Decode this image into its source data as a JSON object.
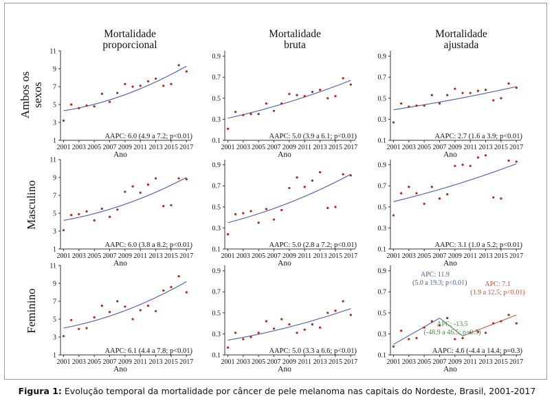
{
  "column_titles": [
    {
      "line1": "Mortalidade",
      "line2": "proporcional"
    },
    {
      "line1": "Mortalidade",
      "line2": "bruta"
    },
    {
      "line1": "Mortalidade",
      "line2": "ajustada"
    }
  ],
  "row_titles": [
    {
      "line1": "Ambos os",
      "line2": "sexos"
    },
    {
      "line1": "Masculino",
      "line2": ""
    },
    {
      "line1": "Feminino",
      "line2": ""
    }
  ],
  "caption": {
    "label": "Figura 1:",
    "text": " Evolução temporal da mortalidade por câncer de pele melanoma nas capitais do Nordeste, Brasil, 2001-2017"
  },
  "colors": {
    "point": "#b22222",
    "trend": "#4a5aa8",
    "apc1": "#4a5aa8",
    "apc2": "#4a8a4a",
    "apc3": "#c8503c"
  },
  "chart_data": [
    {
      "type": "scatter",
      "row": 0,
      "col": 0,
      "xlabel": "Ano",
      "ylabel": "",
      "x": [
        2001,
        2002,
        2003,
        2004,
        2005,
        2006,
        2007,
        2008,
        2009,
        2010,
        2011,
        2012,
        2013,
        2014,
        2015,
        2016,
        2017
      ],
      "xticks": [
        "2001",
        "2003",
        "2005",
        "2007",
        "2009",
        "2011",
        "2013",
        "2015",
        "2017"
      ],
      "yticks": [
        "1",
        "3",
        "5",
        "7",
        "9",
        "11"
      ],
      "ylim": [
        1,
        11
      ],
      "points": [
        3.2,
        5.0,
        4.6,
        4.9,
        4.8,
        6.2,
        5.3,
        6.3,
        7.3,
        7.0,
        7.1,
        7.6,
        7.9,
        7.1,
        7.3,
        9.4,
        8.7
      ],
      "trend": [
        [
          2001,
          4.3
        ],
        [
          2017,
          9.3
        ]
      ],
      "curve": 1.4,
      "annotation": "AAPC: 6.0 (4.9 a 7.2; p<0.01)"
    },
    {
      "type": "scatter",
      "row": 0,
      "col": 1,
      "xlabel": "Ano",
      "ylabel": "",
      "x": [
        2001,
        2002,
        2003,
        2004,
        2005,
        2006,
        2007,
        2008,
        2009,
        2010,
        2011,
        2012,
        2013,
        2014,
        2015,
        2016,
        2017
      ],
      "xticks": [
        "2001",
        "2003",
        "2005",
        "2007",
        "2009",
        "2011",
        "2013",
        "2015",
        "2017"
      ],
      "yticks": [
        "0.1",
        "0.3",
        "0.5",
        "0.7",
        "0.9"
      ],
      "ylim": [
        0.1,
        0.95
      ],
      "points": [
        0.21,
        0.37,
        0.34,
        0.35,
        0.35,
        0.45,
        0.38,
        0.45,
        0.54,
        0.53,
        0.52,
        0.56,
        0.58,
        0.5,
        0.52,
        0.69,
        0.63
      ],
      "trend": [
        [
          2001,
          0.31
        ],
        [
          2017,
          0.67
        ]
      ],
      "curve": 0.05,
      "annotation": "AAPC: 5.0 (3.9 a 6.1; p<0.01)"
    },
    {
      "type": "scatter",
      "row": 0,
      "col": 2,
      "xlabel": "Ano",
      "ylabel": "",
      "x": [
        2001,
        2002,
        2003,
        2004,
        2005,
        2006,
        2007,
        2008,
        2009,
        2010,
        2011,
        2012,
        2013,
        2014,
        2015,
        2016,
        2017
      ],
      "xticks": [
        "2001",
        "2003",
        "2005",
        "2007",
        "2009",
        "2011",
        "2013",
        "2015",
        "2017"
      ],
      "yticks": [
        "0.1",
        "0.3",
        "0.5",
        "0.7",
        "0.9"
      ],
      "ylim": [
        0.1,
        0.95
      ],
      "points": [
        0.27,
        0.45,
        0.42,
        0.43,
        0.43,
        0.53,
        0.45,
        0.53,
        0.59,
        0.55,
        0.55,
        0.57,
        0.58,
        0.48,
        0.5,
        0.64,
        0.6
      ],
      "trend": [
        [
          2001,
          0.39
        ],
        [
          2017,
          0.61
        ]
      ],
      "curve": 0.02,
      "annotation": "AAPC: 2.7 (1.6 a 3.9; p<0.01)"
    },
    {
      "type": "scatter",
      "row": 1,
      "col": 0,
      "xlabel": "Ano",
      "ylabel": "",
      "x": [
        2001,
        2002,
        2003,
        2004,
        2005,
        2006,
        2007,
        2008,
        2009,
        2010,
        2011,
        2012,
        2013,
        2014,
        2015,
        2016,
        2017
      ],
      "xticks": [
        "2001",
        "2003",
        "2005",
        "2007",
        "2009",
        "2011",
        "2013",
        "2015",
        "2017"
      ],
      "yticks": [
        "1",
        "3",
        "5",
        "7",
        "9",
        "11"
      ],
      "ylim": [
        1,
        11
      ],
      "points": [
        3.1,
        4.8,
        4.9,
        5.2,
        4.2,
        5.5,
        4.6,
        5.4,
        7.4,
        8.0,
        7.3,
        8.2,
        8.9,
        5.8,
        5.9,
        8.9,
        8.8
      ],
      "trend": [
        [
          2001,
          4.2
        ],
        [
          2017,
          9.0
        ]
      ],
      "curve": 1.2,
      "annotation": "AAPC: 6.0 (3.8 a 8.2; p<0.01)"
    },
    {
      "type": "scatter",
      "row": 1,
      "col": 1,
      "xlabel": "Ano",
      "ylabel": "",
      "x": [
        2001,
        2002,
        2003,
        2004,
        2005,
        2006,
        2007,
        2008,
        2009,
        2010,
        2011,
        2012,
        2013,
        2014,
        2015,
        2016,
        2017
      ],
      "xticks": [
        "2001",
        "2003",
        "2005",
        "2007",
        "2009",
        "2011",
        "2013",
        "2015",
        "2017"
      ],
      "yticks": [
        "0.1",
        "0.3",
        "0.5",
        "0.7",
        "0.9"
      ],
      "ylim": [
        0.1,
        0.95
      ],
      "points": [
        0.24,
        0.43,
        0.44,
        0.46,
        0.35,
        0.48,
        0.38,
        0.47,
        0.68,
        0.78,
        0.69,
        0.75,
        0.83,
        0.49,
        0.5,
        0.81,
        0.8
      ],
      "trend": [
        [
          2001,
          0.35
        ],
        [
          2017,
          0.81
        ]
      ],
      "curve": 0.08,
      "annotation": "AAPC: 5.0 (2.8 a 7.2; p<0.01)"
    },
    {
      "type": "scatter",
      "row": 1,
      "col": 2,
      "xlabel": "Ano",
      "ylabel": "",
      "x": [
        2001,
        2002,
        2003,
        2004,
        2005,
        2006,
        2007,
        2008,
        2009,
        2010,
        2011,
        2012,
        2013,
        2014,
        2015,
        2016,
        2017
      ],
      "xticks": [
        "2001",
        "2003",
        "2005",
        "2007",
        "2009",
        "2011",
        "2013",
        "2015",
        "2017"
      ],
      "yticks": [
        "0.1",
        "0.3",
        "0.5",
        "0.7",
        "0.9"
      ],
      "ylim": [
        0.1,
        0.95
      ],
      "points": [
        0.42,
        0.63,
        0.69,
        0.63,
        0.53,
        0.69,
        0.58,
        0.62,
        0.89,
        0.9,
        0.89,
        0.97,
        0.99,
        0.59,
        0.58,
        0.94,
        0.93
      ],
      "trend": [
        [
          2001,
          0.55
        ],
        [
          2017,
          0.91
        ]
      ],
      "curve": 0.04,
      "annotation": "AAPC: 3.1 (1.0 a 5.2; p<0.01)"
    },
    {
      "type": "scatter",
      "row": 2,
      "col": 0,
      "xlabel": "Ano",
      "ylabel": "",
      "x": [
        2001,
        2002,
        2003,
        2004,
        2005,
        2006,
        2007,
        2008,
        2009,
        2010,
        2011,
        2012,
        2013,
        2014,
        2015,
        2016,
        2017
      ],
      "xticks": [
        "2001",
        "2003",
        "2005",
        "2007",
        "2009",
        "2011",
        "2013",
        "2015",
        "2017"
      ],
      "yticks": [
        "1",
        "3",
        "5",
        "7",
        "9",
        "11"
      ],
      "ylim": [
        1,
        11
      ],
      "points": [
        3.1,
        4.9,
        3.9,
        4.0,
        5.2,
        6.5,
        5.8,
        7.0,
        6.4,
        5.0,
        6.0,
        6.5,
        5.9,
        8.2,
        8.6,
        9.8,
        8.0
      ],
      "trend": [
        [
          2001,
          4.0
        ],
        [
          2017,
          9.2
        ]
      ],
      "curve": 1.3,
      "annotation": "AAPC: 6.1 (4.4 a 7.8; p<0.01)"
    },
    {
      "type": "scatter",
      "row": 2,
      "col": 1,
      "xlabel": "Ano",
      "ylabel": "",
      "x": [
        2001,
        2002,
        2003,
        2004,
        2005,
        2006,
        2007,
        2008,
        2009,
        2010,
        2011,
        2012,
        2013,
        2014,
        2015,
        2016,
        2017
      ],
      "xticks": [
        "2001",
        "2003",
        "2005",
        "2007",
        "2009",
        "2011",
        "2013",
        "2015",
        "2017"
      ],
      "yticks": [
        "0.1",
        "0.3",
        "0.5",
        "0.7",
        "0.9"
      ],
      "ylim": [
        0.1,
        0.95
      ],
      "points": [
        0.17,
        0.31,
        0.25,
        0.27,
        0.31,
        0.42,
        0.35,
        0.44,
        0.39,
        0.31,
        0.34,
        0.39,
        0.36,
        0.5,
        0.52,
        0.61,
        0.48
      ],
      "trend": [
        [
          2001,
          0.24
        ],
        [
          2017,
          0.54
        ]
      ],
      "curve": 0.05,
      "annotation": "AAPC: 5.0 (3.3 a 6.6; p<0.01)"
    },
    {
      "type": "scatter",
      "row": 2,
      "col": 2,
      "xlabel": "Ano",
      "ylabel": "",
      "x": [
        2001,
        2002,
        2003,
        2004,
        2005,
        2006,
        2007,
        2008,
        2009,
        2010,
        2011,
        2012,
        2013,
        2014,
        2015,
        2016,
        2017
      ],
      "xticks": [
        "2001",
        "2003",
        "2005",
        "2007",
        "2009",
        "2011",
        "2013",
        "2015",
        "2017"
      ],
      "yticks": [
        "0.1",
        "0.3",
        "0.5",
        "0.7",
        "0.9"
      ],
      "ylim": [
        0.1,
        0.95
      ],
      "points": [
        0.18,
        0.33,
        0.25,
        0.26,
        0.36,
        0.42,
        0.38,
        0.45,
        0.25,
        0.26,
        0.31,
        0.32,
        0.31,
        0.4,
        0.42,
        0.48,
        0.4
      ],
      "segments": [
        {
          "from": [
            2001,
            0.2
          ],
          "to": [
            2007,
            0.45
          ],
          "color": "apc1"
        },
        {
          "from": [
            2007,
            0.45
          ],
          "to": [
            2010,
            0.28
          ],
          "color": "apc2"
        },
        {
          "from": [
            2010,
            0.28
          ],
          "to": [
            2017,
            0.48
          ],
          "color": "apc3"
        }
      ],
      "apc_labels": [
        {
          "line1": "APC: 11.9",
          "line2": "(5.0 a 19.3; p<0.01)",
          "color": "apc1",
          "anchor": "start"
        },
        {
          "line1": "APC: 7.1",
          "line2": "(1.9 a 12.5; p<0.01)",
          "color": "apc3",
          "anchor": "middle"
        },
        {
          "line1": "APC: -13.5",
          "line2": "(-48.9 a 46.5; p=0.5)",
          "color": "apc2",
          "anchor": "middle"
        }
      ],
      "annotation": "AAPC: 4.6 (-4.4 a 14.4; p=0.3)"
    }
  ]
}
